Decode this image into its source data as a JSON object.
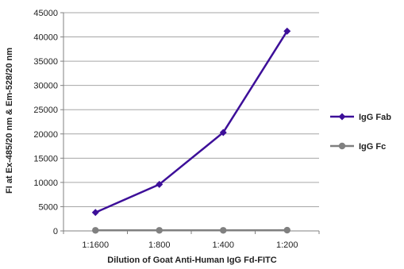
{
  "chart_data": {
    "type": "line",
    "categories": [
      "1:1600",
      "1:800",
      "1:400",
      "1:200"
    ],
    "series": [
      {
        "name": "IgG Fab",
        "values": [
          3800,
          9600,
          20300,
          41200
        ],
        "color": "#3d0f99",
        "marker": "diamond"
      },
      {
        "name": "IgG Fc",
        "values": [
          120,
          120,
          120,
          150
        ],
        "color": "#808080",
        "marker": "circle"
      }
    ],
    "title": "",
    "xlabel": "Dilution of Goat Anti-Human IgG Fd-FITC",
    "ylabel": "FI at Ex-485/20 nm & Em-528/20 nm",
    "ylim": [
      0,
      45000
    ],
    "yticks": [
      0,
      5000,
      10000,
      15000,
      20000,
      25000,
      30000,
      35000,
      40000,
      45000
    ],
    "grid": "horizontal",
    "legend_position": "right"
  }
}
